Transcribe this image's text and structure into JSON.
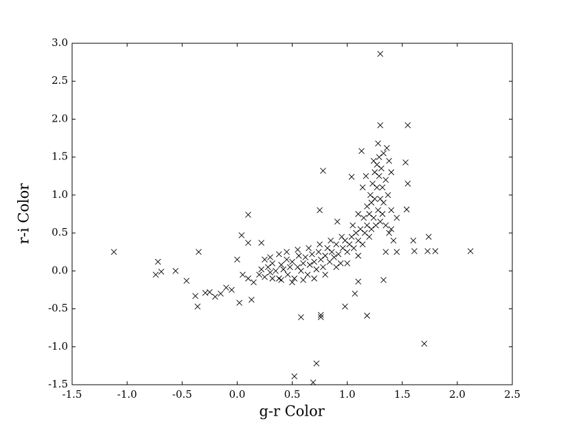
{
  "chart_data": {
    "type": "scatter",
    "x_label": "g-r Color",
    "y_label": "r-i Color",
    "marker": "x",
    "color": "#000000",
    "xlim": [
      -1.5,
      2.5
    ],
    "ylim": [
      -1.5,
      3.0
    ],
    "xticks": [
      -1.5,
      {
        "value": -1,
        "label": "-1.0"
      },
      -0.5,
      {
        "value": 0,
        "label": "0.0"
      },
      0.5,
      {
        "value": 1,
        "label": "1.0"
      },
      1.5,
      {
        "value": 2,
        "label": "2.0"
      },
      2.5
    ],
    "yticks": [
      -1.5,
      {
        "value": -1,
        "label": "-1.0"
      },
      -0.5,
      {
        "value": 0,
        "label": "0.0"
      },
      0.5,
      {
        "value": 1,
        "label": "1.0"
      },
      1.5,
      {
        "value": 2,
        "label": "2.0"
      },
      2.5,
      {
        "value": 3,
        "label": "3.0"
      }
    ],
    "x": [
      -1.12,
      -0.72,
      -0.74,
      -0.69,
      -0.56,
      -0.35,
      -0.46,
      -0.38,
      -0.36,
      -0.29,
      -0.2,
      0.02,
      0.1,
      0.04,
      0.1,
      0.0,
      0.13,
      0.22,
      1.3,
      1.3,
      1.55,
      0.78,
      0.75,
      0.91,
      1.33,
      0.52,
      0.69,
      0.72,
      0.58,
      0.76,
      0.76,
      0.98,
      1.18,
      1.7,
      2.12,
      1.8,
      1.73,
      1.74,
      1.6,
      1.61,
      1.53,
      1.55,
      1.54,
      1.13,
      1.04,
      1.1,
      1.07,
      0.2,
      0.22,
      0.25,
      0.28,
      0.3,
      0.32,
      0.35,
      0.38,
      0.4,
      0.42,
      0.45,
      0.46,
      0.48,
      0.5,
      0.52,
      0.55,
      0.56,
      0.58,
      0.6,
      0.62,
      0.64,
      0.66,
      0.68,
      0.7,
      0.72,
      0.74,
      0.76,
      0.78,
      0.8,
      0.82,
      0.84,
      0.86,
      0.88,
      0.9,
      0.92,
      0.94,
      0.96,
      0.98,
      1.0,
      1.02,
      1.04,
      1.06,
      1.08,
      1.1,
      1.12,
      1.14,
      1.15,
      1.16,
      1.18,
      1.18,
      1.2,
      1.2,
      1.21,
      1.22,
      1.22,
      1.23,
      1.24,
      1.25,
      1.25,
      1.26,
      1.27,
      1.27,
      1.28,
      1.29,
      1.29,
      1.3,
      1.3,
      1.31,
      1.32,
      1.32,
      1.33,
      1.33,
      1.35,
      1.35,
      1.37,
      1.38,
      1.4,
      1.4,
      1.42,
      1.38,
      1.36,
      1.28,
      1.24,
      1.17,
      1.14,
      1.1,
      1.05,
      0.95,
      0.85,
      0.75,
      0.65,
      0.55,
      0.45,
      0.38,
      0.3,
      0.25,
      1.45,
      1.35,
      1.4,
      1.45,
      1.1,
      1.0,
      0.9,
      0.8,
      0.7,
      0.6,
      0.5,
      0.4,
      0.32,
      0.15,
      0.1,
      0.05,
      -0.05,
      -0.1,
      -0.15,
      -0.25
    ],
    "values": [
      0.25,
      0.12,
      -0.05,
      -0.01,
      0.0,
      0.25,
      -0.13,
      -0.33,
      -0.47,
      -0.29,
      -0.34,
      -0.42,
      0.74,
      0.47,
      0.37,
      0.15,
      -0.38,
      0.37,
      2.86,
      1.92,
      1.92,
      1.32,
      0.8,
      0.65,
      -0.12,
      -1.39,
      -1.47,
      -1.22,
      -0.61,
      -0.58,
      -0.61,
      -0.47,
      -0.59,
      -0.96,
      0.26,
      0.26,
      0.26,
      0.45,
      0.4,
      0.26,
      1.43,
      1.15,
      0.81,
      1.58,
      1.24,
      -0.14,
      -0.3,
      -0.05,
      0.02,
      -0.08,
      0.05,
      -0.02,
      0.1,
      0.0,
      -0.1,
      0.08,
      0.02,
      0.15,
      -0.05,
      0.05,
      0.12,
      -0.1,
      0.05,
      0.2,
      0.0,
      0.1,
      0.18,
      -0.05,
      0.08,
      0.22,
      0.12,
      0.02,
      0.25,
      0.15,
      0.05,
      0.2,
      0.3,
      0.12,
      0.25,
      0.18,
      0.35,
      0.22,
      0.1,
      0.3,
      0.4,
      0.25,
      0.35,
      0.45,
      0.3,
      0.5,
      0.4,
      0.55,
      0.35,
      0.7,
      0.5,
      0.6,
      0.85,
      0.45,
      0.75,
      1.0,
      0.55,
      0.9,
      1.15,
      0.7,
      1.3,
      0.95,
      0.6,
      1.4,
      1.1,
      0.8,
      1.5,
      1.25,
      0.95,
      0.65,
      1.35,
      1.1,
      0.75,
      1.55,
      0.9,
      1.2,
      0.6,
      1.0,
      0.5,
      0.8,
      1.3,
      0.4,
      1.45,
      1.62,
      1.68,
      1.45,
      1.25,
      1.1,
      0.75,
      0.6,
      0.45,
      0.4,
      0.35,
      0.3,
      0.28,
      0.25,
      0.22,
      0.18,
      0.15,
      0.25,
      0.25,
      0.55,
      0.7,
      0.2,
      0.1,
      0.05,
      -0.05,
      -0.1,
      -0.12,
      -0.15,
      -0.12,
      -0.1,
      -0.15,
      -0.1,
      -0.05,
      -0.25,
      -0.22,
      -0.3,
      -0.28
    ]
  }
}
